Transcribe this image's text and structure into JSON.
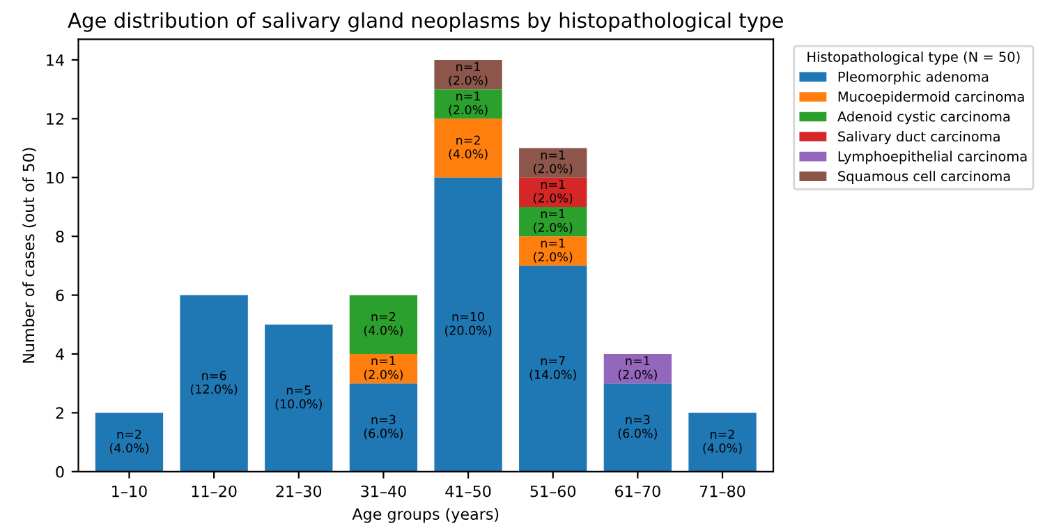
{
  "chart_data": {
    "type": "bar",
    "stacked": true,
    "title": "Age distribution of salivary gland neoplasms by histopathological type",
    "xlabel": "Age groups (years)",
    "ylabel": "Number of cases (out of 50)",
    "legend_title": "Histopathological type (N = 50)",
    "legend": "right",
    "grid": false,
    "categories": [
      "1–10",
      "11–20",
      "21–30",
      "31–40",
      "41–50",
      "51–60",
      "61–70",
      "71–80"
    ],
    "ylim": [
      0,
      14.7
    ],
    "yticks": [
      0,
      2,
      4,
      6,
      8,
      10,
      12,
      14
    ],
    "series": [
      {
        "name": "Pleomorphic adenoma",
        "color": "#1f77b4",
        "values": [
          2,
          6,
          5,
          3,
          10,
          7,
          3,
          2
        ],
        "value_labels": [
          "n=2\n(4.0%)",
          "n=6\n(12.0%)",
          "n=5\n(10.0%)",
          "n=3\n(6.0%)",
          "n=10\n(20.0%)",
          "n=7\n(14.0%)",
          "n=3\n(6.0%)",
          "n=2\n(4.0%)"
        ]
      },
      {
        "name": "Mucoepidermoid carcinoma",
        "color": "#ff7f0e",
        "values": [
          null,
          null,
          null,
          1,
          2,
          1,
          null,
          null
        ],
        "value_labels": [
          null,
          null,
          null,
          "n=1\n(2.0%)",
          "n=2\n(4.0%)",
          "n=1\n(2.0%)",
          null,
          null
        ]
      },
      {
        "name": "Adenoid cystic carcinoma",
        "color": "#2ca02c",
        "values": [
          null,
          null,
          null,
          2,
          1,
          1,
          null,
          null
        ],
        "value_labels": [
          null,
          null,
          null,
          "n=2\n(4.0%)",
          "n=1\n(2.0%)",
          "n=1\n(2.0%)",
          null,
          null
        ]
      },
      {
        "name": "Salivary duct carcinoma",
        "color": "#d62728",
        "values": [
          null,
          null,
          null,
          null,
          null,
          1,
          null,
          null
        ],
        "value_labels": [
          null,
          null,
          null,
          null,
          null,
          "n=1\n(2.0%)",
          null,
          null
        ]
      },
      {
        "name": "Lymphoepithelial carcinoma",
        "color": "#9467bd",
        "values": [
          null,
          null,
          null,
          null,
          null,
          null,
          1,
          null
        ],
        "value_labels": [
          null,
          null,
          null,
          null,
          null,
          null,
          "n=1\n(2.0%)",
          null
        ]
      },
      {
        "name": "Squamous cell carcinoma",
        "color": "#8c564b",
        "values": [
          null,
          null,
          null,
          null,
          1,
          1,
          null,
          null
        ],
        "value_labels": [
          null,
          null,
          null,
          null,
          "n=1\n(2.0%)",
          "n=1\n(2.0%)",
          null,
          null
        ]
      }
    ]
  }
}
